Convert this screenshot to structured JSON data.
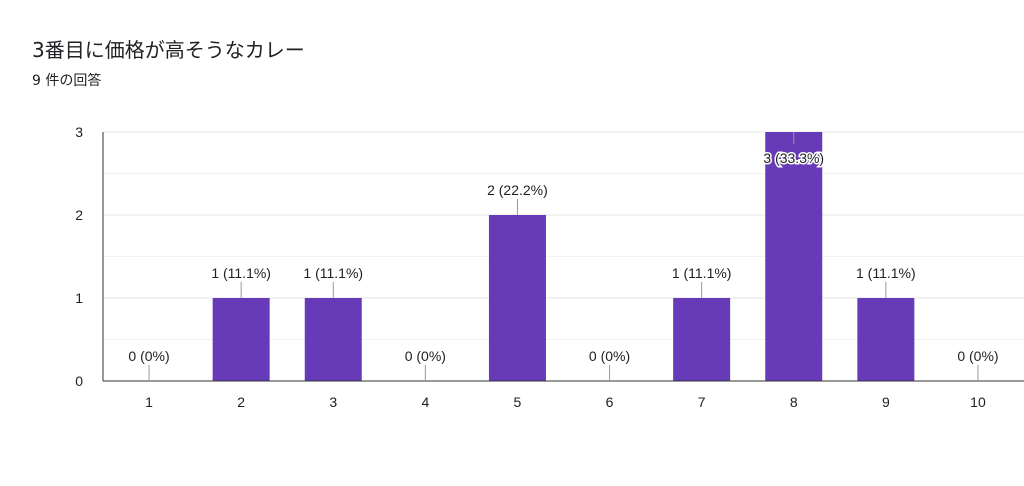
{
  "chart_data": {
    "type": "bar",
    "title": "3番目に価格が高そうなカレー",
    "subtitle": "9 件の回答",
    "categories": [
      "1",
      "2",
      "3",
      "4",
      "5",
      "6",
      "7",
      "8",
      "9",
      "10"
    ],
    "values": [
      0,
      1,
      1,
      0,
      2,
      0,
      1,
      3,
      1,
      0
    ],
    "data_labels": [
      "0 (0%)",
      "1 (11.1%)",
      "1 (11.1%)",
      "0 (0%)",
      "2 (22.2%)",
      "0 (0%)",
      "1 (11.1%)",
      "3 (33.3%)",
      "1 (11.1%)",
      "0 (0%)"
    ],
    "y_ticks": [
      "0",
      "1",
      "2",
      "3"
    ],
    "ylim": [
      0,
      3
    ],
    "xlabel": "",
    "ylabel": "",
    "grid": true,
    "colors": {
      "bar": "#673ab7",
      "grid": "#e6e6e6",
      "axis": "#333333",
      "leader": "#999999"
    }
  }
}
